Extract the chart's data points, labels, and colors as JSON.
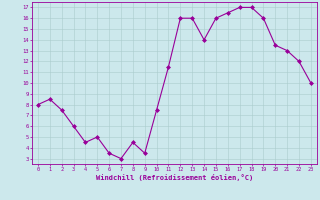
{
  "x": [
    0,
    1,
    2,
    3,
    4,
    5,
    6,
    7,
    8,
    9,
    10,
    11,
    12,
    13,
    14,
    15,
    16,
    17,
    18,
    19,
    20,
    21,
    22,
    23
  ],
  "y": [
    8,
    8.5,
    7.5,
    6,
    4.5,
    5,
    3.5,
    3,
    4.5,
    3.5,
    7.5,
    11.5,
    16,
    16,
    14,
    16,
    16.5,
    17,
    17,
    16,
    13.5,
    13,
    12,
    10
  ],
  "line_color": "#990099",
  "marker": "D",
  "marker_size": 2.0,
  "bg_color": "#cce8ec",
  "grid_color": "#aacccc",
  "xlabel": "Windchill (Refroidissement éolien,°C)",
  "xlabel_color": "#990099",
  "ytick_labels": [
    "3",
    "4",
    "5",
    "6",
    "7",
    "8",
    "9",
    "10",
    "11",
    "12",
    "13",
    "14",
    "15",
    "16",
    "17"
  ],
  "ytick_values": [
    3,
    4,
    5,
    6,
    7,
    8,
    9,
    10,
    11,
    12,
    13,
    14,
    15,
    16,
    17
  ],
  "xlim": [
    -0.5,
    23.5
  ],
  "ylim": [
    2.5,
    17.5
  ]
}
